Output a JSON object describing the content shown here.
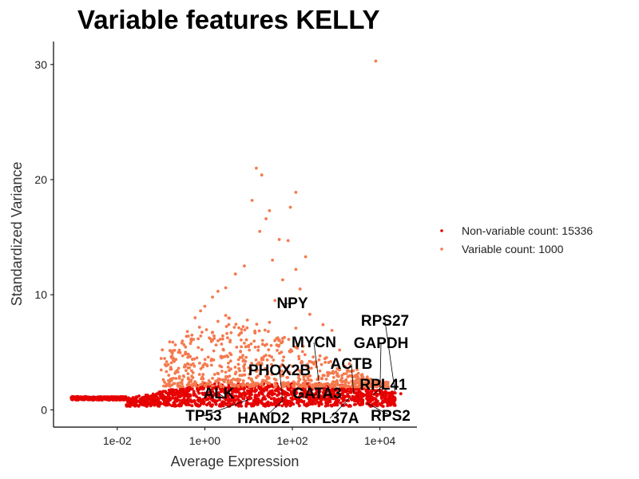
{
  "chart_data": {
    "type": "scatter",
    "title": "Variable features KELLY",
    "xlabel": "Average Expression",
    "ylabel": "Standardized Variance",
    "x_scale": "log10",
    "xlim": [
      0.00035,
      70000
    ],
    "ylim": [
      -1.5,
      32
    ],
    "x_ticks": [
      {
        "value": 0.01,
        "label": "1e-02"
      },
      {
        "value": 1,
        "label": "1e+00"
      },
      {
        "value": 100,
        "label": "1e+02"
      },
      {
        "value": 10000,
        "label": "1e+04"
      }
    ],
    "y_ticks": [
      {
        "value": 0,
        "label": "0"
      },
      {
        "value": 10,
        "label": "10"
      },
      {
        "value": 20,
        "label": "20"
      },
      {
        "value": 30,
        "label": "30"
      }
    ],
    "grid": false,
    "legend_position": "right",
    "series": [
      {
        "name": "Non-variable count: 15336",
        "color": "#e60000",
        "description_points": "dense band",
        "points": [
          [
            0.0009,
            1.0
          ],
          [
            0.0013,
            1.0
          ],
          [
            0.002,
            0.95
          ],
          [
            0.003,
            1.0
          ],
          [
            0.004,
            0.9
          ],
          [
            0.006,
            1.0
          ],
          [
            0.008,
            0.85
          ],
          [
            0.01,
            1.0
          ],
          [
            0.013,
            0.9
          ],
          [
            0.018,
            0.8
          ],
          [
            0.025,
            0.95
          ],
          [
            0.035,
            0.85
          ],
          [
            0.05,
            0.9
          ],
          [
            0.07,
            1.1
          ],
          [
            0.1,
            1.2
          ],
          [
            0.15,
            1.3
          ],
          [
            0.2,
            1.5
          ],
          [
            0.3,
            1.6
          ],
          [
            0.5,
            1.8
          ],
          [
            0.8,
            1.9
          ],
          [
            1.2,
            2.0
          ],
          [
            2,
            2.0
          ],
          [
            3,
            1.9
          ],
          [
            5,
            1.8
          ],
          [
            8,
            1.9
          ],
          [
            12,
            1.7
          ],
          [
            20,
            1.6
          ],
          [
            35,
            1.5
          ],
          [
            60,
            1.4
          ],
          [
            100,
            1.3
          ],
          [
            180,
            1.2
          ],
          [
            300,
            1.1
          ],
          [
            500,
            1.1
          ],
          [
            900,
            1.0
          ],
          [
            1500,
            1.2
          ],
          [
            3000,
            1.3
          ],
          [
            6000,
            1.2
          ],
          [
            12000,
            1.4
          ],
          [
            20000,
            1.5
          ],
          [
            30000,
            1.4
          ]
        ]
      },
      {
        "name": "Variable count: 1000",
        "color": "#f47a4e",
        "points": [
          [
            8000,
            30.3
          ],
          [
            15,
            21.0
          ],
          [
            20,
            20.4
          ],
          [
            120,
            18.9
          ],
          [
            12,
            18.2
          ],
          [
            30,
            17.3
          ],
          [
            90,
            17.6
          ],
          [
            25,
            16.6
          ],
          [
            18,
            15.5
          ],
          [
            50,
            14.8
          ],
          [
            80,
            14.7
          ],
          [
            200,
            13.3
          ],
          [
            35,
            13.0
          ],
          [
            8,
            12.5
          ],
          [
            120,
            12.2
          ],
          [
            5,
            11.8
          ],
          [
            60,
            11.3
          ],
          [
            3,
            10.6
          ],
          [
            2,
            10.3
          ],
          [
            150,
            10.5
          ],
          [
            1.5,
            9.8
          ],
          [
            40,
            9.5
          ],
          [
            1,
            9.0
          ],
          [
            0.8,
            8.6
          ],
          [
            0.6,
            8.0
          ],
          [
            3,
            8.2
          ],
          [
            250,
            8.3
          ],
          [
            30,
            7.6
          ],
          [
            120,
            7.1
          ],
          [
            500,
            7.4
          ],
          [
            800,
            6.9
          ],
          [
            0.4,
            6.8
          ],
          [
            6,
            6.5
          ],
          [
            2,
            6.0
          ],
          [
            60,
            6.2
          ],
          [
            0.3,
            5.8
          ],
          [
            10,
            5.5
          ],
          [
            1200,
            5.2
          ],
          [
            0.25,
            5.0
          ],
          [
            4,
            4.8
          ],
          [
            300,
            4.6
          ],
          [
            20,
            4.5
          ],
          [
            0.2,
            4.2
          ],
          [
            1,
            4.0
          ],
          [
            2000,
            4.0
          ],
          [
            100,
            3.8
          ],
          [
            8,
            3.6
          ],
          [
            0.5,
            3.4
          ],
          [
            3000,
            3.5
          ],
          [
            50,
            3.2
          ],
          [
            0.15,
            3.0
          ],
          [
            500,
            3.0
          ],
          [
            15,
            2.8
          ],
          [
            4000,
            2.8
          ],
          [
            2,
            2.6
          ],
          [
            200,
            2.5
          ],
          [
            6000,
            2.6
          ],
          [
            0.12,
            2.4
          ],
          [
            1000,
            2.4
          ],
          [
            30,
            2.3
          ],
          [
            9000,
            2.3
          ],
          [
            0.8,
            2.2
          ],
          [
            400,
            2.2
          ],
          [
            5,
            2.1
          ],
          [
            15000,
            2.0
          ]
        ]
      }
    ],
    "annotations": [
      {
        "label": "NPY",
        "x": 60,
        "y": 9.2
      },
      {
        "label": "RPS27",
        "x": 22000,
        "y": 1.6
      },
      {
        "label": "GAPDH",
        "x": 10000,
        "y": 1.4
      },
      {
        "label": "MYCN",
        "x": 400,
        "y": 2.5
      },
      {
        "label": "ACTB",
        "x": 2500,
        "y": 1.4
      },
      {
        "label": "PHOX2B",
        "x": 60,
        "y": 0.7
      },
      {
        "label": "GATA3",
        "x": 300,
        "y": 1.2
      },
      {
        "label": "RPL41",
        "x": 7000,
        "y": 1.3
      },
      {
        "label": "ALK",
        "x": 3,
        "y": 1.0
      },
      {
        "label": "TP53",
        "x": 10,
        "y": 0.9
      },
      {
        "label": "HAND2",
        "x": 60,
        "y": 0.8
      },
      {
        "label": "RPL37A",
        "x": 2000,
        "y": 1.0
      },
      {
        "label": "RPS2",
        "x": 5000,
        "y": 0.6
      }
    ]
  }
}
